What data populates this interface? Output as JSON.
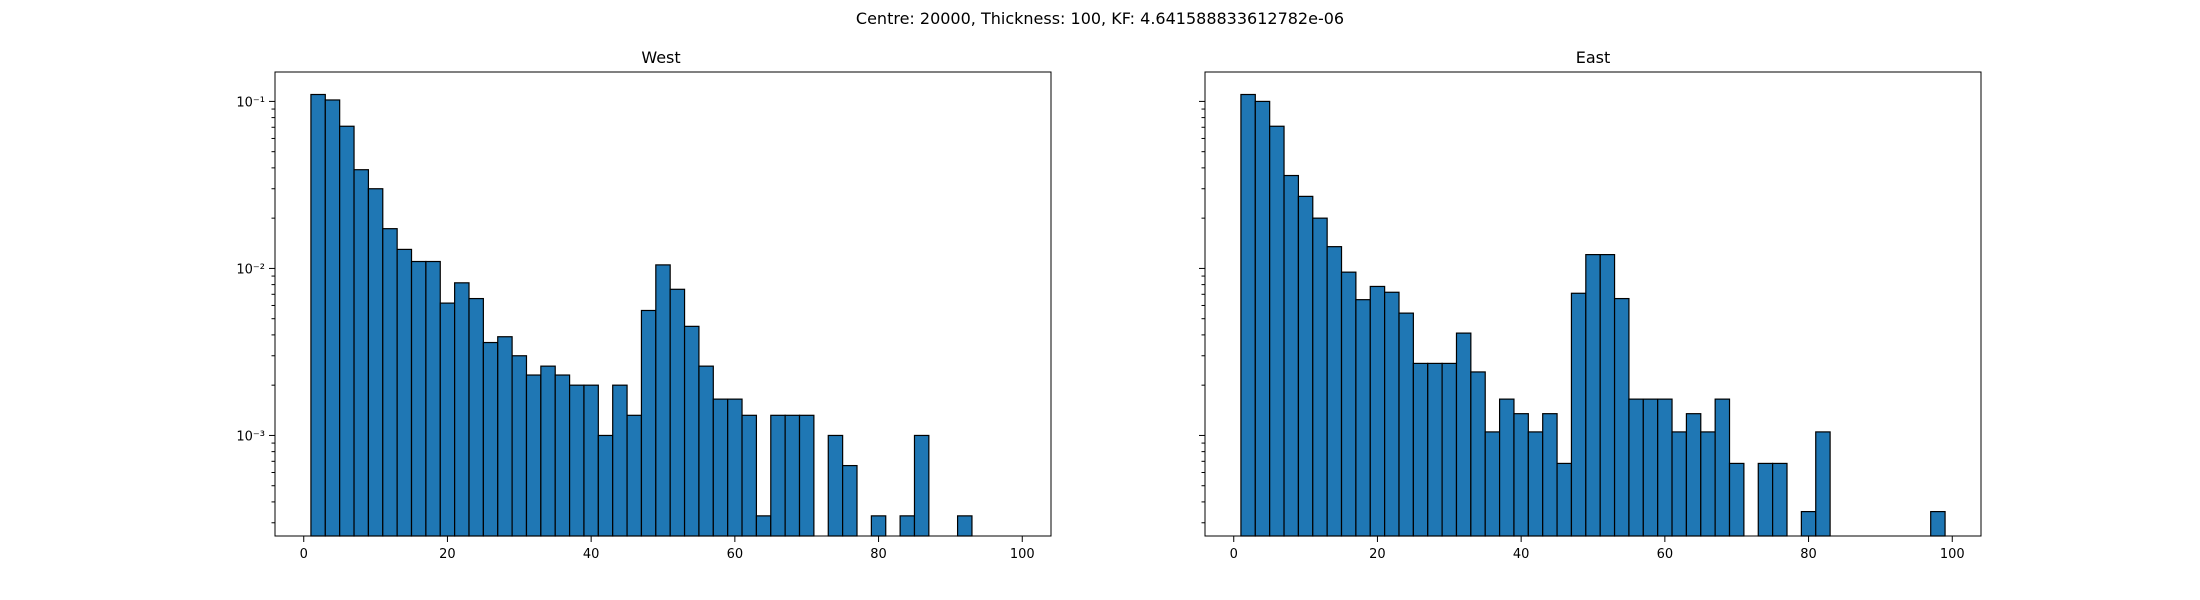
{
  "figure": {
    "suptitle": "Centre: 20000, Thickness: 100, KF: 4.641588833612782e-06"
  },
  "chart_data": [
    {
      "type": "bar",
      "title": "West",
      "xlabel": "",
      "ylabel": "",
      "yscale": "log",
      "xlim": [
        -4,
        104
      ],
      "ylim": [
        0.00025,
        0.15
      ],
      "bin_width": 2,
      "bar_color": "#1f77b4",
      "edge_color": "#000000",
      "x_ticks": [
        0,
        20,
        40,
        60,
        80,
        100
      ],
      "y_ticks": [
        {
          "value": 0.001,
          "label": "10⁻³"
        },
        {
          "value": 0.01,
          "label": "10⁻²"
        },
        {
          "value": 0.1,
          "label": "10⁻¹"
        }
      ],
      "bin_edges_start": 1,
      "values": [
        0.11,
        0.102,
        0.071,
        0.039,
        0.03,
        0.0173,
        0.013,
        0.011,
        0.011,
        0.0062,
        0.0082,
        0.0066,
        0.0036,
        0.0039,
        0.003,
        0.0023,
        0.0026,
        0.0023,
        0.002,
        0.002,
        0.001,
        0.002,
        0.00132,
        0.0056,
        0.0105,
        0.0075,
        0.0045,
        0.0026,
        0.00165,
        0.00165,
        0.00132,
        0.00033,
        0.00132,
        0.00132,
        0.00132,
        0,
        0.001,
        0.00066,
        0,
        0.00033,
        0,
        0.00033,
        0.001,
        0,
        0,
        0.00033,
        0,
        0,
        0,
        0
      ]
    },
    {
      "type": "bar",
      "title": "East",
      "xlabel": "",
      "ylabel": "",
      "yscale": "log",
      "xlim": [
        -4,
        104
      ],
      "ylim": [
        0.00025,
        0.15
      ],
      "bin_width": 2,
      "bar_color": "#1f77b4",
      "edge_color": "#000000",
      "x_ticks": [
        0,
        20,
        40,
        60,
        80,
        100
      ],
      "y_ticks": [
        {
          "value": 0.001,
          "label": ""
        },
        {
          "value": 0.01,
          "label": ""
        },
        {
          "value": 0.1,
          "label": ""
        }
      ],
      "bin_edges_start": 1,
      "values": [
        0.11,
        0.1,
        0.071,
        0.036,
        0.027,
        0.02,
        0.0135,
        0.0095,
        0.0065,
        0.0078,
        0.0072,
        0.0054,
        0.0027,
        0.0027,
        0.0027,
        0.0041,
        0.0024,
        0.00105,
        0.00165,
        0.00135,
        0.00105,
        0.00135,
        0.00068,
        0.0071,
        0.0121,
        0.0121,
        0.0066,
        0.00165,
        0.00165,
        0.00165,
        0.00105,
        0.00135,
        0.00105,
        0.00165,
        0.00068,
        0,
        0.00068,
        0.00068,
        0,
        0.00035,
        0.00105,
        0,
        0,
        0,
        0,
        0,
        0,
        0,
        0.00035,
        0
      ]
    }
  ]
}
